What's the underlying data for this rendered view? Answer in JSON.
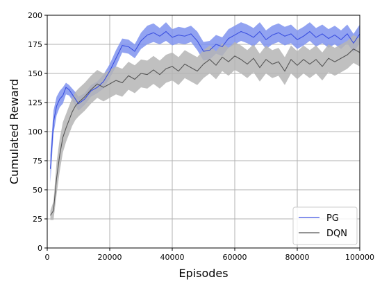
{
  "chart_data": {
    "type": "line",
    "title": "",
    "xlabel": "Episodes",
    "ylabel": "Cumulated Reward",
    "xlim": [
      0,
      100000
    ],
    "ylim": [
      0,
      200
    ],
    "xticks": [
      "0",
      "20000",
      "40000",
      "60000",
      "80000",
      "100000"
    ],
    "yticks": [
      "0",
      "25",
      "50",
      "75",
      "100",
      "125",
      "150",
      "175",
      "200"
    ],
    "grid": true,
    "legend_position": "bottom-right",
    "series": [
      {
        "name": "PG",
        "color": "#3a4fe0",
        "band_color": "#7f93ee",
        "x": [
          1000,
          2000,
          3000,
          4000,
          5000,
          6000,
          7000,
          8000,
          9000,
          10000,
          12000,
          14000,
          16000,
          18000,
          20000,
          22000,
          24000,
          26000,
          28000,
          30000,
          32000,
          34000,
          36000,
          38000,
          40000,
          42000,
          44000,
          46000,
          48000,
          50000,
          52000,
          54000,
          56000,
          58000,
          60000,
          62000,
          64000,
          66000,
          68000,
          70000,
          72000,
          74000,
          76000,
          78000,
          80000,
          82000,
          84000,
          86000,
          88000,
          90000,
          92000,
          94000,
          96000,
          98000,
          100000
        ],
        "y": [
          68,
          108,
          122,
          128,
          131,
          138,
          136,
          132,
          128,
          124,
          128,
          135,
          138,
          143,
          152,
          163,
          174,
          173,
          169,
          178,
          183,
          185,
          182,
          186,
          181,
          183,
          182,
          184,
          178,
          169,
          170,
          175,
          173,
          180,
          183,
          186,
          184,
          181,
          186,
          179,
          183,
          185,
          182,
          184,
          179,
          182,
          186,
          181,
          184,
          180,
          183,
          179,
          184,
          176,
          184
        ],
        "upper": [
          80,
          118,
          130,
          135,
          138,
          142,
          140,
          137,
          134,
          130,
          133,
          140,
          143,
          149,
          158,
          170,
          180,
          179,
          175,
          185,
          191,
          193,
          189,
          194,
          188,
          190,
          189,
          191,
          186,
          177,
          178,
          183,
          181,
          188,
          191,
          194,
          192,
          189,
          194,
          187,
          191,
          193,
          190,
          192,
          187,
          190,
          194,
          189,
          192,
          188,
          191,
          187,
          192,
          184,
          192
        ],
        "lower": [
          56,
          98,
          114,
          121,
          124,
          132,
          131,
          127,
          122,
          118,
          123,
          130,
          133,
          137,
          146,
          156,
          168,
          167,
          163,
          171,
          175,
          177,
          175,
          178,
          174,
          176,
          175,
          177,
          170,
          161,
          162,
          167,
          165,
          172,
          175,
          178,
          176,
          173,
          178,
          171,
          175,
          177,
          174,
          176,
          171,
          174,
          178,
          173,
          176,
          172,
          175,
          171,
          176,
          168,
          176
        ]
      },
      {
        "name": "DQN",
        "color": "#555555",
        "band_color": "#b5b5b5",
        "x": [
          1000,
          2000,
          3000,
          4000,
          5000,
          6000,
          7000,
          8000,
          9000,
          10000,
          12000,
          14000,
          16000,
          18000,
          20000,
          22000,
          24000,
          26000,
          28000,
          30000,
          32000,
          34000,
          36000,
          38000,
          40000,
          42000,
          44000,
          46000,
          48000,
          50000,
          52000,
          54000,
          56000,
          58000,
          60000,
          62000,
          64000,
          66000,
          68000,
          70000,
          72000,
          74000,
          76000,
          78000,
          80000,
          82000,
          84000,
          86000,
          88000,
          90000,
          92000,
          94000,
          96000,
          98000,
          100000
        ],
        "y": [
          28,
          32,
          60,
          80,
          95,
          103,
          110,
          117,
          122,
          125,
          130,
          136,
          141,
          138,
          141,
          144,
          142,
          148,
          145,
          150,
          149,
          153,
          149,
          154,
          156,
          152,
          158,
          155,
          152,
          158,
          162,
          157,
          164,
          160,
          165,
          162,
          158,
          163,
          155,
          162,
          158,
          160,
          152,
          162,
          157,
          162,
          158,
          162,
          156,
          163,
          160,
          163,
          166,
          171,
          168
        ],
        "upper": [
          32,
          40,
          74,
          94,
          108,
          115,
          122,
          129,
          134,
          137,
          142,
          148,
          153,
          150,
          153,
          156,
          154,
          160,
          157,
          162,
          161,
          165,
          161,
          166,
          168,
          164,
          170,
          167,
          164,
          170,
          174,
          169,
          176,
          172,
          177,
          174,
          170,
          175,
          167,
          174,
          170,
          172,
          164,
          174,
          169,
          174,
          170,
          174,
          168,
          175,
          172,
          175,
          178,
          183,
          180
        ],
        "lower": [
          24,
          24,
          46,
          66,
          82,
          91,
          98,
          105,
          110,
          113,
          118,
          124,
          129,
          126,
          129,
          132,
          130,
          136,
          133,
          138,
          137,
          141,
          137,
          142,
          144,
          140,
          146,
          143,
          140,
          146,
          150,
          145,
          152,
          148,
          153,
          150,
          146,
          151,
          143,
          150,
          146,
          148,
          140,
          150,
          145,
          150,
          146,
          150,
          144,
          151,
          148,
          151,
          154,
          159,
          156
        ]
      }
    ]
  }
}
